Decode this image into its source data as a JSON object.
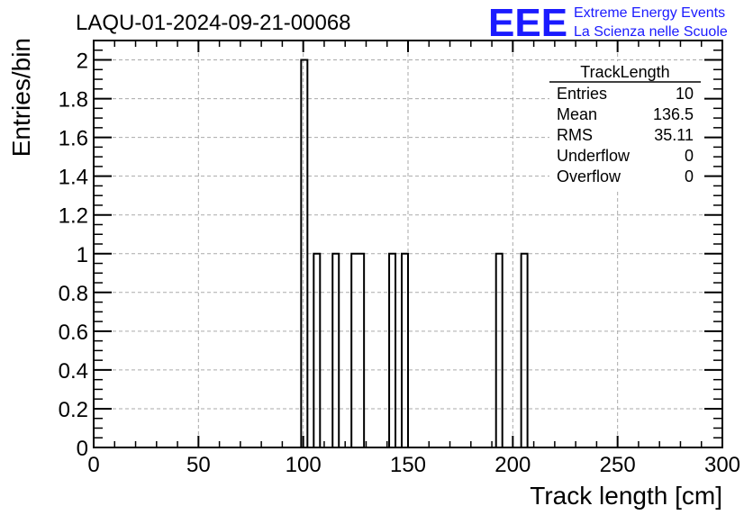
{
  "chart_data": {
    "type": "bar",
    "title": "LAQU-01-2024-09-21-00068",
    "xlabel": "Track length [cm]",
    "ylabel": "Entries/bin",
    "xlim": [
      0,
      300
    ],
    "ylim": [
      0,
      2.1
    ],
    "x_ticks": [
      0,
      50,
      100,
      150,
      200,
      250,
      300
    ],
    "y_ticks": [
      0,
      0.2,
      0.4,
      0.6,
      0.8,
      1,
      1.2,
      1.4,
      1.6,
      1.8,
      2
    ],
    "y_tick_labels": [
      "0",
      "0.2",
      "0.4",
      "0.6",
      "0.8",
      "1",
      "1.2",
      "1.4",
      "1.6",
      "1.8",
      "2"
    ],
    "grid": true,
    "bin_width": 3,
    "bins": [
      {
        "x0": 99,
        "x1": 102,
        "value": 2
      },
      {
        "x0": 105,
        "x1": 108,
        "value": 1
      },
      {
        "x0": 114,
        "x1": 117,
        "value": 1
      },
      {
        "x0": 123,
        "x1": 129,
        "value": 1
      },
      {
        "x0": 141,
        "x1": 144,
        "value": 1
      },
      {
        "x0": 147,
        "x1": 150,
        "value": 1
      },
      {
        "x0": 192,
        "x1": 195,
        "value": 1
      },
      {
        "x0": 204,
        "x1": 207,
        "value": 1
      }
    ],
    "stats": {
      "title": "TrackLength",
      "rows": [
        {
          "label": "Entries",
          "value": "10"
        },
        {
          "label": "Mean",
          "value": "136.5"
        },
        {
          "label": "RMS",
          "value": "35.11"
        },
        {
          "label": "Underflow",
          "value": "0"
        },
        {
          "label": "Overflow",
          "value": "0"
        }
      ]
    }
  },
  "logo": {
    "text": "EEE",
    "line1": "Extreme Energy Events",
    "line2": "La Scienza nelle Scuole",
    "color": "#1a1aff"
  },
  "colors": {
    "frame": "#000000",
    "grid": "#aaaaaa",
    "histogram": "#000000"
  }
}
